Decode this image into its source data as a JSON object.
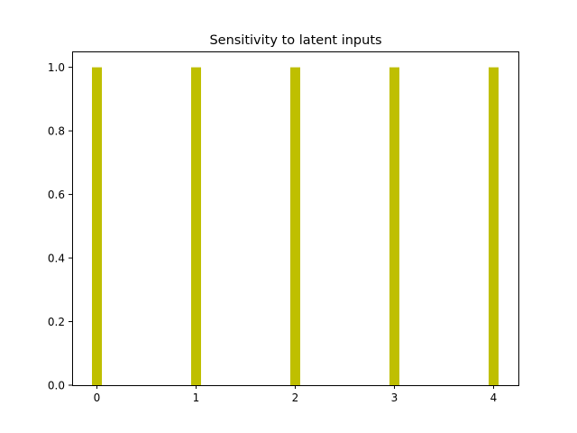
{
  "chart_data": {
    "type": "bar",
    "title": "Sensitivity to latent inputs",
    "xlabel": "",
    "ylabel": "",
    "categories": [
      0,
      1,
      2,
      3,
      4
    ],
    "values": [
      1.0,
      1.0,
      1.0,
      1.0,
      1.0
    ],
    "bar_color": "#bfbf00",
    "xlim": [
      -0.25,
      4.25
    ],
    "ylim": [
      0,
      1.05
    ],
    "xticks": [
      "0",
      "1",
      "2",
      "3",
      "4"
    ],
    "yticks": [
      "0.0",
      "0.2",
      "0.4",
      "0.6",
      "0.8",
      "1.0"
    ],
    "grid": false,
    "legend": "none"
  }
}
